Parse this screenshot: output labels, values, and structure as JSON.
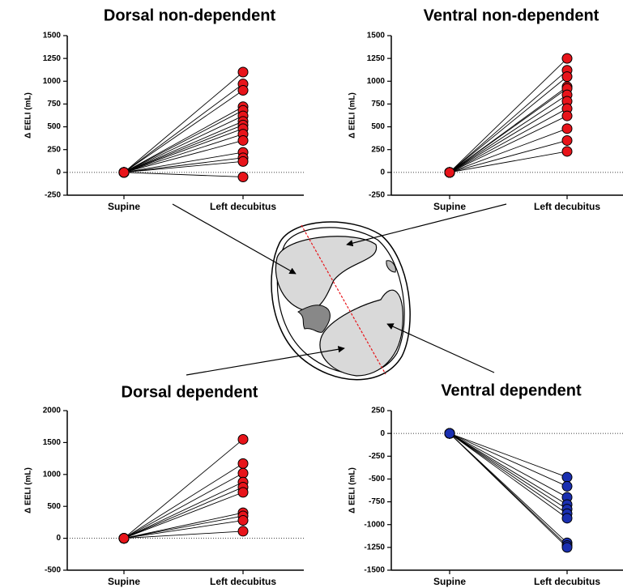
{
  "chart_data": [
    {
      "type": "slope",
      "title": "Dorsal non-dependent",
      "y_label": "Δ EELI  (mL)",
      "categories": [
        "Supine",
        "Left decubitus"
      ],
      "color": "#e8141a",
      "ylim": [
        -250,
        1500
      ],
      "yticks": [
        -250,
        0,
        250,
        500,
        750,
        1000,
        1250,
        1500
      ],
      "series": [
        {
          "values": [
            0,
            1100
          ]
        },
        {
          "values": [
            0,
            970
          ]
        },
        {
          "values": [
            0,
            900
          ]
        },
        {
          "values": [
            0,
            720
          ]
        },
        {
          "values": [
            0,
            680
          ]
        },
        {
          "values": [
            0,
            620
          ]
        },
        {
          "values": [
            0,
            560
          ]
        },
        {
          "values": [
            0,
            520
          ]
        },
        {
          "values": [
            0,
            480
          ]
        },
        {
          "values": [
            0,
            420
          ]
        },
        {
          "values": [
            0,
            350
          ]
        },
        {
          "values": [
            0,
            220
          ]
        },
        {
          "values": [
            0,
            160
          ]
        },
        {
          "values": [
            0,
            120
          ]
        },
        {
          "values": [
            0,
            -50
          ]
        }
      ]
    },
    {
      "type": "slope",
      "title": "Ventral non-dependent",
      "y_label": "Δ EELI  (mL)",
      "categories": [
        "Supine",
        "Left decubitus"
      ],
      "color": "#e8141a",
      "ylim": [
        -250,
        1500
      ],
      "yticks": [
        -250,
        0,
        250,
        500,
        750,
        1000,
        1250,
        1500
      ],
      "series": [
        {
          "values": [
            0,
            1250
          ]
        },
        {
          "values": [
            0,
            1120
          ]
        },
        {
          "values": [
            0,
            1050
          ]
        },
        {
          "values": [
            0,
            940
          ]
        },
        {
          "values": [
            0,
            920
          ]
        },
        {
          "values": [
            0,
            850
          ]
        },
        {
          "values": [
            0,
            780
          ]
        },
        {
          "values": [
            0,
            700
          ]
        },
        {
          "values": [
            0,
            620
          ]
        },
        {
          "values": [
            0,
            480
          ]
        },
        {
          "values": [
            0,
            350
          ]
        },
        {
          "values": [
            0,
            230
          ]
        }
      ]
    },
    {
      "type": "slope",
      "title": "Dorsal dependent",
      "y_label": "Δ EELI  (mL)",
      "categories": [
        "Supine",
        "Left decubitus"
      ],
      "color": "#e8141a",
      "ylim": [
        -500,
        2000
      ],
      "yticks": [
        -500,
        0,
        500,
        1000,
        1500,
        2000
      ],
      "series": [
        {
          "values": [
            0,
            1550
          ]
        },
        {
          "values": [
            0,
            1170
          ]
        },
        {
          "values": [
            0,
            1020
          ]
        },
        {
          "values": [
            0,
            880
          ]
        },
        {
          "values": [
            0,
            800
          ]
        },
        {
          "values": [
            0,
            720
          ]
        },
        {
          "values": [
            0,
            400
          ]
        },
        {
          "values": [
            0,
            350
          ]
        },
        {
          "values": [
            0,
            280
          ]
        },
        {
          "values": [
            0,
            110
          ]
        }
      ]
    },
    {
      "type": "slope",
      "title": "Ventral dependent",
      "y_label": "Δ EELI  (mL)",
      "categories": [
        "Supine",
        "Left decubitus"
      ],
      "color": "#1a2fb0",
      "ylim": [
        -1500,
        250
      ],
      "yticks": [
        -1500,
        -1250,
        -1000,
        -750,
        -500,
        -250,
        0,
        250
      ],
      "series": [
        {
          "values": [
            0,
            -480
          ]
        },
        {
          "values": [
            0,
            -580
          ]
        },
        {
          "values": [
            0,
            -700
          ]
        },
        {
          "values": [
            0,
            -780
          ]
        },
        {
          "values": [
            0,
            -830
          ]
        },
        {
          "values": [
            0,
            -880
          ]
        },
        {
          "values": [
            0,
            -930
          ]
        },
        {
          "values": [
            0,
            -1200
          ]
        },
        {
          "values": [
            0,
            -1230
          ]
        },
        {
          "values": [
            0,
            -1250
          ]
        }
      ]
    }
  ]
}
